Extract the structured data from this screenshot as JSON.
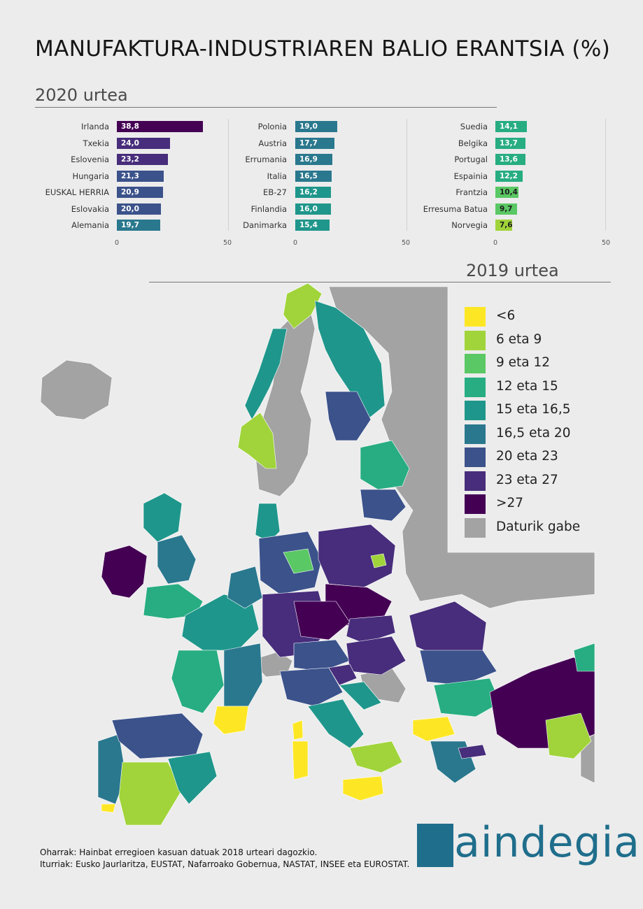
{
  "title": "MANUFAKTURA-INDUSTRIAREN BALIO ERANTSIA (%)",
  "subtitle_2020": "2020 urtea",
  "subtitle_2019": "2019 urtea",
  "chart_data": {
    "type": "bar",
    "orientation": "horizontal",
    "xlim": [
      0,
      50
    ],
    "ticks": [
      "0",
      "50"
    ],
    "panels": [
      {
        "categories": [
          "Irlanda",
          "Txekia",
          "Eslovenia",
          "Hungaria",
          "EUSKAL HERRIA",
          "Eslovakia",
          "Alemania"
        ],
        "values": [
          38.8,
          24.0,
          23.2,
          21.3,
          20.9,
          20.0,
          19.7
        ],
        "labels": [
          "38,8",
          "24,0",
          "23,2",
          "21,3",
          "20,9",
          "20,0",
          "19,7"
        ]
      },
      {
        "categories": [
          "Polonia",
          "Austria",
          "Errumania",
          "Italia",
          "EB-27",
          "Finlandia",
          "Danimarka"
        ],
        "values": [
          19.0,
          17.7,
          16.9,
          16.5,
          16.2,
          16.0,
          15.4
        ],
        "labels": [
          "19,0",
          "17,7",
          "16,9",
          "16,5",
          "16,2",
          "16,0",
          "15,4"
        ]
      },
      {
        "categories": [
          "Suedia",
          "Belgika",
          "Portugal",
          "Espainia",
          "Frantzia",
          "Erresuma Batua",
          "Norvegia"
        ],
        "values": [
          14.1,
          13.7,
          13.6,
          12.2,
          10.4,
          9.7,
          7.6
        ],
        "labels": [
          "14,1",
          "13,7",
          "13,6",
          "12,2",
          "10,4",
          "9,7",
          "7,6"
        ]
      }
    ]
  },
  "map": {
    "legend": [
      {
        "label": "<6",
        "color": "#fde725"
      },
      {
        "label": "6 eta 9",
        "color": "#a0d43a"
      },
      {
        "label": "9 eta 12",
        "color": "#5ac864"
      },
      {
        "label": "12 eta 15",
        "color": "#27ad81"
      },
      {
        "label": "15 eta 16,5",
        "color": "#1f968b"
      },
      {
        "label": "16,5 eta 20",
        "color": "#2a788e"
      },
      {
        "label": "20 eta 23",
        "color": "#3b528b"
      },
      {
        "label": "23 eta 27",
        "color": "#472d7b"
      },
      {
        "label": ">27",
        "color": "#440154"
      },
      {
        "label": "Daturik gabe",
        "color": "#a3a3a3"
      }
    ]
  },
  "notes": [
    "Oharrak: Hainbat erregioen kasuan datuak 2018 urteari dagozkio.",
    "Iturriak: Eusko Jaurlaritza, EUSTAT, Nafarroako Gobernua, NASTAT, INSEE eta EUROSTAT."
  ],
  "logo_text": "gaindegia"
}
